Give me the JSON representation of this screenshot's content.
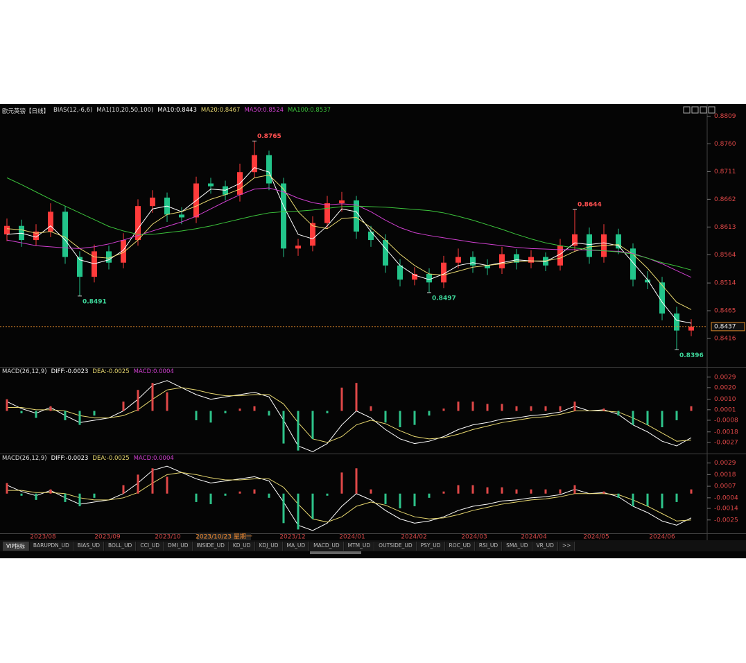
{
  "header": {
    "symbol": "欧元英镑【日线】",
    "bias": "BIAS(12,-6,6)",
    "ma": "MA1(10,20,50,100)"
  },
  "x_axis_labels": [
    "2023/08",
    "2023/09",
    "2023/10",
    "2023/12",
    "2024/01",
    "2024/02",
    "2024/03",
    "2024/04",
    "2024/05",
    "2024/06"
  ],
  "cursor_date": "2023/10/23 星期一",
  "tabs": [
    "VIP指标",
    "BARUPDN_UD",
    "BIAS_UD",
    "BOLL_UD",
    "CCI_UD",
    "DMI_UD",
    "INSIDE_UD",
    "KD_UD",
    "KDJ_UD",
    "MA_UD",
    "MACD_UD",
    "MTM_UD",
    "OUTSIDE_UD",
    "PSY_UD",
    "ROC_UD",
    "RSI_UD",
    "SMA_UD",
    "VR_UD",
    ">>"
  ],
  "chart_data": [
    {
      "type": "candlestick",
      "up_color": "#ff3b3b",
      "down_color": "#22c48a",
      "open": [
        0.86,
        0.8615,
        0.859,
        0.8605,
        0.864,
        0.856,
        0.8525,
        0.857,
        0.855,
        0.859,
        0.865,
        0.8665,
        0.8635,
        0.863,
        0.869,
        0.8685,
        0.867,
        0.871,
        0.874,
        0.869,
        0.8575,
        0.858,
        0.862,
        0.8655,
        0.866,
        0.8605,
        0.859,
        0.8545,
        0.852,
        0.853,
        0.8515,
        0.855,
        0.856,
        0.8545,
        0.854,
        0.8565,
        0.855,
        0.856,
        0.8545,
        0.858,
        0.86,
        0.856,
        0.86,
        0.8575,
        0.852,
        0.8515,
        0.846,
        0.843
      ],
      "high": [
        0.8628,
        0.8626,
        0.8618,
        0.8655,
        0.865,
        0.857,
        0.8582,
        0.858,
        0.8602,
        0.8662,
        0.8678,
        0.8674,
        0.8648,
        0.8702,
        0.87,
        0.8695,
        0.8725,
        0.8765,
        0.8748,
        0.87,
        0.8592,
        0.8632,
        0.8668,
        0.8675,
        0.8668,
        0.8615,
        0.86,
        0.8556,
        0.8542,
        0.854,
        0.8562,
        0.8575,
        0.857,
        0.8556,
        0.8578,
        0.8574,
        0.8572,
        0.8568,
        0.8592,
        0.8644,
        0.8612,
        0.8618,
        0.861,
        0.8584,
        0.8535,
        0.8525,
        0.8472,
        0.845
      ],
      "low": [
        0.8588,
        0.8578,
        0.858,
        0.8595,
        0.8548,
        0.8491,
        0.8515,
        0.8538,
        0.854,
        0.858,
        0.8638,
        0.8622,
        0.8618,
        0.862,
        0.8672,
        0.866,
        0.8658,
        0.87,
        0.8678,
        0.856,
        0.8562,
        0.857,
        0.861,
        0.864,
        0.8592,
        0.8578,
        0.8532,
        0.8508,
        0.851,
        0.8497,
        0.8505,
        0.854,
        0.8532,
        0.8528,
        0.853,
        0.8538,
        0.854,
        0.8535,
        0.8536,
        0.857,
        0.8548,
        0.855,
        0.8565,
        0.8508,
        0.8503,
        0.8448,
        0.8396,
        0.842
      ],
      "close": [
        0.8615,
        0.859,
        0.8605,
        0.864,
        0.856,
        0.8525,
        0.857,
        0.855,
        0.859,
        0.865,
        0.8665,
        0.8635,
        0.863,
        0.869,
        0.8685,
        0.867,
        0.871,
        0.874,
        0.869,
        0.8575,
        0.858,
        0.862,
        0.8655,
        0.866,
        0.8605,
        0.859,
        0.8545,
        0.852,
        0.853,
        0.8515,
        0.855,
        0.856,
        0.8545,
        0.854,
        0.8565,
        0.855,
        0.856,
        0.8545,
        0.858,
        0.86,
        0.856,
        0.86,
        0.8575,
        0.852,
        0.8515,
        0.846,
        0.843,
        0.8437
      ],
      "series": [
        {
          "name": "MA10:0.8443",
          "color": "#ffffff",
          "values": [
            0.86,
            0.8602,
            0.8595,
            0.8615,
            0.859,
            0.8555,
            0.8548,
            0.8555,
            0.8572,
            0.861,
            0.8645,
            0.865,
            0.864,
            0.866,
            0.868,
            0.8678,
            0.869,
            0.8718,
            0.871,
            0.865,
            0.86,
            0.8592,
            0.8615,
            0.8645,
            0.864,
            0.8605,
            0.8575,
            0.8545,
            0.8528,
            0.852,
            0.853,
            0.8545,
            0.855,
            0.8545,
            0.855,
            0.8555,
            0.8553,
            0.8552,
            0.8565,
            0.8585,
            0.8582,
            0.8585,
            0.858,
            0.855,
            0.852,
            0.848,
            0.8448,
            0.8443
          ]
        },
        {
          "name": "MA20:0.8467",
          "color": "#e8d870",
          "values": [
            0.861,
            0.8608,
            0.8602,
            0.8605,
            0.8595,
            0.8575,
            0.856,
            0.8558,
            0.8568,
            0.859,
            0.8618,
            0.8635,
            0.864,
            0.865,
            0.8662,
            0.867,
            0.868,
            0.87,
            0.8705,
            0.868,
            0.864,
            0.8615,
            0.861,
            0.8628,
            0.863,
            0.8612,
            0.859,
            0.8565,
            0.8545,
            0.853,
            0.8528,
            0.8535,
            0.8542,
            0.8545,
            0.8548,
            0.8552,
            0.8553,
            0.8553,
            0.8558,
            0.857,
            0.8578,
            0.858,
            0.8582,
            0.8565,
            0.854,
            0.851,
            0.848,
            0.8467
          ]
        },
        {
          "name": "MA50:0.8524",
          "color": "#d040d0",
          "values": [
            0.859,
            0.8585,
            0.858,
            0.8578,
            0.8576,
            0.8575,
            0.8578,
            0.8583,
            0.859,
            0.8598,
            0.8606,
            0.8614,
            0.8622,
            0.8632,
            0.8645,
            0.8658,
            0.867,
            0.868,
            0.8682,
            0.8675,
            0.8664,
            0.8656,
            0.8652,
            0.8654,
            0.8652,
            0.864,
            0.8625,
            0.8612,
            0.8603,
            0.8598,
            0.8594,
            0.859,
            0.8586,
            0.8583,
            0.858,
            0.8577,
            0.8575,
            0.8574,
            0.8573,
            0.8573,
            0.8572,
            0.8571,
            0.857,
            0.8566,
            0.8558,
            0.8548,
            0.8536,
            0.8524
          ]
        },
        {
          "name": "MA100:0.8537",
          "color": "#3cc43c",
          "values": [
            0.87,
            0.8688,
            0.8675,
            0.8662,
            0.865,
            0.8638,
            0.8626,
            0.8614,
            0.8606,
            0.86,
            0.86,
            0.8603,
            0.8606,
            0.861,
            0.8615,
            0.8621,
            0.8627,
            0.8633,
            0.8638,
            0.864,
            0.8641,
            0.8643,
            0.8646,
            0.8649,
            0.865,
            0.8649,
            0.8648,
            0.8646,
            0.8644,
            0.8642,
            0.8638,
            0.8632,
            0.8625,
            0.8617,
            0.8609,
            0.86,
            0.8592,
            0.8585,
            0.858,
            0.8576,
            0.8573,
            0.8571,
            0.8569,
            0.8565,
            0.8558,
            0.855,
            0.8544,
            0.8537
          ]
        }
      ],
      "annotations": [
        0.8765,
        0.8491,
        0.8497,
        0.8644,
        0.8396
      ],
      "last_price": 0.8437,
      "ylim": [
        0.8367,
        0.8812
      ],
      "yticks": [
        0.8809,
        {
          "value": 0.876,
          "label": "0.8760"
        },
        0.8711,
        0.8662,
        0.8613,
        0.8564,
        0.8514,
        0.8465,
        0.8416
      ]
    },
    {
      "type": "macd",
      "title": "MACD(26,12,9)",
      "up_color": "#e04848",
      "down_color": "#2ec48a",
      "series": [
        {
          "name": "DIFF:-0.0023",
          "color": "#ffffff",
          "values": [
            0.0008,
            0.0002,
            -0.0002,
            0.0003,
            -0.0004,
            -0.001,
            -0.0008,
            -0.0006,
            0.0,
            0.001,
            0.0022,
            0.0026,
            0.002,
            0.0014,
            0.001,
            0.0012,
            0.0014,
            0.0016,
            0.0012,
            -0.0008,
            -0.003,
            -0.0035,
            -0.0028,
            -0.0012,
            0.0,
            -0.0006,
            -0.0016,
            -0.0024,
            -0.0028,
            -0.0026,
            -0.0022,
            -0.0016,
            -0.0012,
            -0.001,
            -0.0007,
            -0.0006,
            -0.0004,
            -0.0003,
            -0.0001,
            0.0004,
            0.0,
            0.0001,
            -0.0003,
            -0.0012,
            -0.0018,
            -0.0026,
            -0.003,
            -0.0023
          ]
        },
        {
          "name": "DEA:-0.0025",
          "color": "#e8d870",
          "values": [
            0.0003,
            0.0003,
            0.0001,
            0.0001,
            0.0,
            -0.0004,
            -0.0006,
            -0.0006,
            -0.0004,
            0.0001,
            0.001,
            0.0018,
            0.002,
            0.0018,
            0.0015,
            0.0013,
            0.0013,
            0.0014,
            0.0014,
            0.0006,
            -0.001,
            -0.0024,
            -0.0027,
            -0.0022,
            -0.0012,
            -0.0008,
            -0.0011,
            -0.0017,
            -0.0022,
            -0.0024,
            -0.0023,
            -0.002,
            -0.0016,
            -0.0013,
            -0.001,
            -0.0008,
            -0.0006,
            -0.0005,
            -0.0003,
            0.0,
            0.0,
            0.0,
            -0.0001,
            -0.0006,
            -0.0012,
            -0.0019,
            -0.0026,
            -0.0025
          ]
        },
        {
          "name": "MACD:0.0004",
          "color": "#d040d0",
          "histogram": true,
          "values": [
            0.001,
            -0.0002,
            -0.0006,
            0.0004,
            -0.0008,
            -0.0012,
            -0.0004,
            0.0,
            0.0008,
            0.0018,
            0.0024,
            0.0016,
            0.0,
            -0.0008,
            -0.001,
            -0.0002,
            0.0002,
            0.0004,
            -0.0004,
            -0.0028,
            -0.0034,
            -0.0024,
            -0.0002,
            0.002,
            0.0024,
            0.0004,
            -0.001,
            -0.0014,
            -0.0012,
            -0.0004,
            0.0002,
            0.0008,
            0.0008,
            0.0006,
            0.0006,
            0.0004,
            0.0004,
            0.0004,
            0.0004,
            0.0008,
            0.0,
            0.0002,
            -0.0004,
            -0.0012,
            -0.0012,
            -0.0014,
            -0.0008,
            0.0004
          ]
        }
      ],
      "ylim": [
        -0.0036,
        0.0036
      ],
      "yticks": [
        0.0029,
        {
          "value": 0.002,
          "label": "0.0020"
        },
        {
          "value": 0.001,
          "label": "0.0010"
        },
        0.0001,
        -0.0008,
        -0.0018,
        -0.0027
      ]
    },
    {
      "type": "macd",
      "title": "MACD(26,12,9)",
      "up_color": "#e04848",
      "down_color": "#2ec48a",
      "series": [
        {
          "name": "DIFF:-0.0023",
          "color": "#ffffff",
          "values": [
            0.0008,
            0.0002,
            -0.0002,
            0.0003,
            -0.0004,
            -0.001,
            -0.0008,
            -0.0006,
            0.0,
            0.001,
            0.0022,
            0.0026,
            0.002,
            0.0014,
            0.001,
            0.0012,
            0.0014,
            0.0016,
            0.0012,
            -0.0008,
            -0.003,
            -0.0035,
            -0.0028,
            -0.0012,
            0.0,
            -0.0006,
            -0.0016,
            -0.0024,
            -0.0028,
            -0.0026,
            -0.0022,
            -0.0016,
            -0.0012,
            -0.001,
            -0.0007,
            -0.0006,
            -0.0004,
            -0.0003,
            -0.0001,
            0.0004,
            0.0,
            0.0001,
            -0.0003,
            -0.0012,
            -0.0018,
            -0.0026,
            -0.003,
            -0.0023
          ]
        },
        {
          "name": "DEA:-0.0025",
          "color": "#e8d870",
          "values": [
            0.0003,
            0.0003,
            0.0001,
            0.0001,
            0.0,
            -0.0004,
            -0.0006,
            -0.0006,
            -0.0004,
            0.0001,
            0.001,
            0.0018,
            0.002,
            0.0018,
            0.0015,
            0.0013,
            0.0013,
            0.0014,
            0.0014,
            0.0006,
            -0.001,
            -0.0024,
            -0.0027,
            -0.0022,
            -0.0012,
            -0.0008,
            -0.0011,
            -0.0017,
            -0.0022,
            -0.0024,
            -0.0023,
            -0.002,
            -0.0016,
            -0.0013,
            -0.001,
            -0.0008,
            -0.0006,
            -0.0005,
            -0.0003,
            0.0,
            0.0,
            0.0,
            -0.0001,
            -0.0006,
            -0.0012,
            -0.0019,
            -0.0026,
            -0.0025
          ]
        },
        {
          "name": "MACD:0.0004",
          "color": "#d040d0",
          "histogram": true,
          "values": [
            0.001,
            -0.0002,
            -0.0006,
            0.0004,
            -0.0008,
            -0.0012,
            -0.0004,
            0.0,
            0.0008,
            0.0018,
            0.0024,
            0.0016,
            0.0,
            -0.0008,
            -0.001,
            -0.0002,
            0.0002,
            0.0004,
            -0.0004,
            -0.0028,
            -0.0034,
            -0.0024,
            -0.0002,
            0.002,
            0.0024,
            0.0004,
            -0.001,
            -0.0014,
            -0.0012,
            -0.0004,
            0.0002,
            0.0008,
            0.0008,
            0.0006,
            0.0006,
            0.0004,
            0.0004,
            0.0004,
            0.0004,
            0.0008,
            0.0,
            0.0002,
            -0.0004,
            -0.0012,
            -0.0012,
            -0.0014,
            -0.0008,
            0.0004
          ]
        }
      ],
      "ylim": [
        -0.0037,
        0.0036
      ],
      "yticks": [
        0.0029,
        0.0018,
        0.0007,
        -0.0004,
        -0.0014,
        -0.0025
      ]
    }
  ]
}
